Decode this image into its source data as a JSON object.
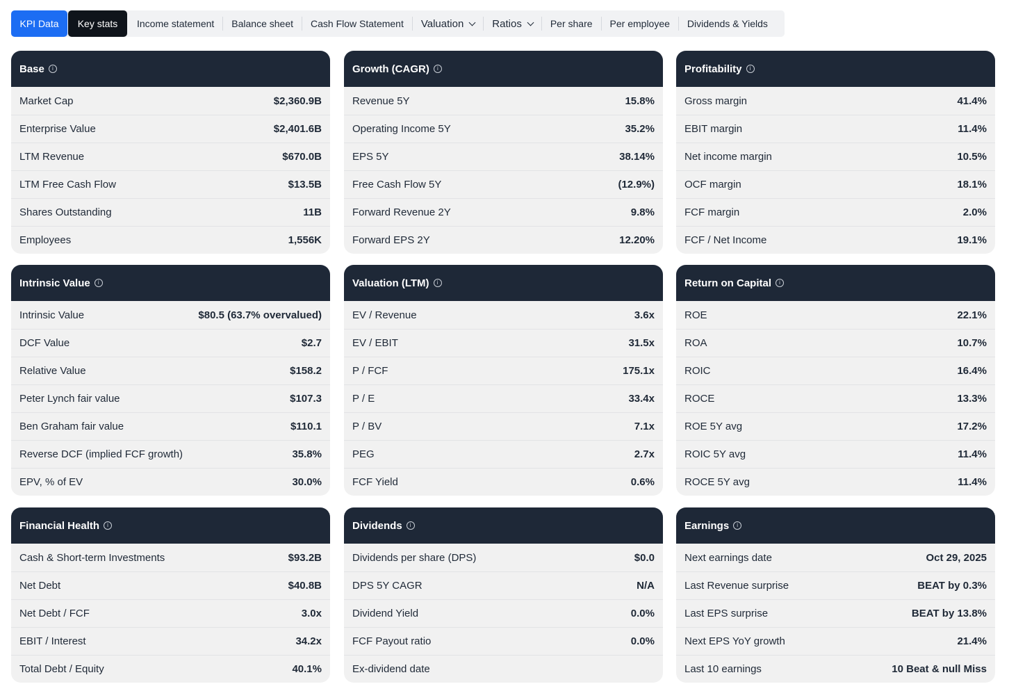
{
  "tabs": {
    "kpi": "KPI Data",
    "key": "Key stats",
    "links": [
      "Income statement",
      "Balance sheet",
      "Cash Flow Statement"
    ],
    "valuation": "Valuation",
    "ratios": "Ratios",
    "links2": [
      "Per share",
      "Per employee",
      "Dividends & Yields"
    ]
  },
  "cards": [
    {
      "title": "Base",
      "rows": [
        {
          "label": "Market Cap",
          "value": "$2,360.9B"
        },
        {
          "label": "Enterprise Value",
          "value": "$2,401.6B"
        },
        {
          "label": "LTM Revenue",
          "value": "$670.0B"
        },
        {
          "label": "LTM Free Cash Flow",
          "value": "$13.5B"
        },
        {
          "label": "Shares Outstanding",
          "value": "11B"
        },
        {
          "label": "Employees",
          "value": "1,556K"
        }
      ]
    },
    {
      "title": "Growth (CAGR)",
      "rows": [
        {
          "label": "Revenue 5Y",
          "value": "15.8%"
        },
        {
          "label": "Operating Income 5Y",
          "value": "35.2%"
        },
        {
          "label": "EPS 5Y",
          "value": "38.14%"
        },
        {
          "label": "Free Cash Flow 5Y",
          "value": "(12.9%)"
        },
        {
          "label": "Forward Revenue 2Y",
          "value": "9.8%"
        },
        {
          "label": "Forward EPS 2Y",
          "value": "12.20%"
        }
      ]
    },
    {
      "title": "Profitability",
      "rows": [
        {
          "label": "Gross margin",
          "value": "41.4%"
        },
        {
          "label": "EBIT margin",
          "value": "11.4%"
        },
        {
          "label": "Net income margin",
          "value": "10.5%"
        },
        {
          "label": "OCF margin",
          "value": "18.1%"
        },
        {
          "label": "FCF margin",
          "value": "2.0%"
        },
        {
          "label": "FCF / Net Income",
          "value": "19.1%"
        }
      ]
    },
    {
      "title": "Intrinsic Value",
      "rows": [
        {
          "label": "Intrinsic Value",
          "value": "$80.5 (63.7% overvalued)"
        },
        {
          "label": "DCF Value",
          "value": "$2.7"
        },
        {
          "label": "Relative Value",
          "value": "$158.2"
        },
        {
          "label": "Peter Lynch fair value",
          "value": "$107.3"
        },
        {
          "label": "Ben Graham fair value",
          "value": "$110.1"
        },
        {
          "label": "Reverse DCF (implied FCF growth)",
          "value": "35.8%"
        },
        {
          "label": "EPV, % of EV",
          "value": "30.0%"
        }
      ]
    },
    {
      "title": "Valuation (LTM)",
      "rows": [
        {
          "label": "EV / Revenue",
          "value": "3.6x"
        },
        {
          "label": "EV / EBIT",
          "value": "31.5x"
        },
        {
          "label": "P / FCF",
          "value": "175.1x"
        },
        {
          "label": "P / E",
          "value": "33.4x"
        },
        {
          "label": "P / BV",
          "value": "7.1x"
        },
        {
          "label": "PEG",
          "value": "2.7x"
        },
        {
          "label": "FCF Yield",
          "value": "0.6%"
        }
      ]
    },
    {
      "title": "Return on Capital",
      "rows": [
        {
          "label": "ROE",
          "value": "22.1%"
        },
        {
          "label": "ROA",
          "value": "10.7%"
        },
        {
          "label": "ROIC",
          "value": "16.4%"
        },
        {
          "label": "ROCE",
          "value": "13.3%"
        },
        {
          "label": "ROE 5Y avg",
          "value": "17.2%"
        },
        {
          "label": "ROIC 5Y avg",
          "value": "11.4%"
        },
        {
          "label": "ROCE 5Y avg",
          "value": "11.4%"
        }
      ]
    },
    {
      "title": "Financial Health",
      "rows": [
        {
          "label": "Cash & Short-term Investments",
          "value": "$93.2B"
        },
        {
          "label": "Net Debt",
          "value": "$40.8B"
        },
        {
          "label": "Net Debt / FCF",
          "value": "3.0x"
        },
        {
          "label": "EBIT / Interest",
          "value": "34.2x"
        },
        {
          "label": "Total Debt / Equity",
          "value": "40.1%"
        }
      ]
    },
    {
      "title": "Dividends",
      "rows": [
        {
          "label": "Dividends per share (DPS)",
          "value": "$0.0"
        },
        {
          "label": "DPS 5Y CAGR",
          "value": "N/A"
        },
        {
          "label": "Dividend Yield",
          "value": "0.0%"
        },
        {
          "label": "FCF Payout ratio",
          "value": "0.0%"
        },
        {
          "label": "Ex-dividend date",
          "value": ""
        }
      ]
    },
    {
      "title": "Earnings",
      "rows": [
        {
          "label": "Next earnings date",
          "value": "Oct 29, 2025"
        },
        {
          "label": "Last Revenue surprise",
          "value": "BEAT by 0.3%"
        },
        {
          "label": "Last EPS surprise",
          "value": "BEAT by 13.8%"
        },
        {
          "label": "Next EPS YoY growth",
          "value": "21.4%"
        },
        {
          "label": "Last 10 earnings",
          "value": "10 Beat & null Miss"
        }
      ]
    }
  ]
}
